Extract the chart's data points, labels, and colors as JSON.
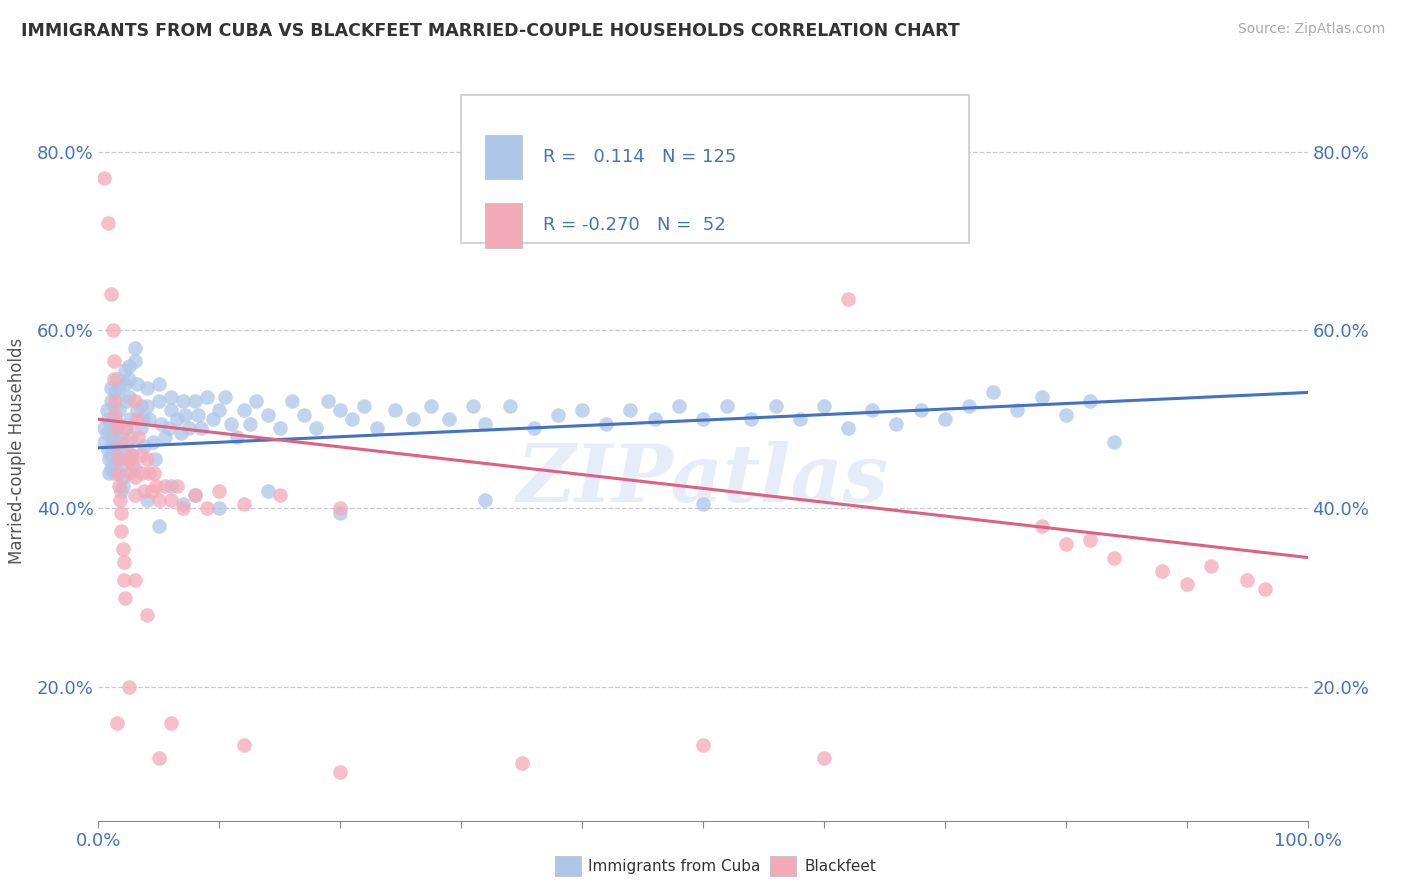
{
  "title": "IMMIGRANTS FROM CUBA VS BLACKFEET MARRIED-COUPLE HOUSEHOLDS CORRELATION CHART",
  "source_text": "Source: ZipAtlas.com",
  "ylabel": "Married-couple Households",
  "xlim": [
    0.0,
    1.0
  ],
  "ylim": [
    0.05,
    0.88
  ],
  "ytick_vals": [
    0.2,
    0.4,
    0.6,
    0.8
  ],
  "watermark": "ZIPatlas",
  "blue_color": "#aec6e8",
  "pink_color": "#f4a9b8",
  "blue_line_color": "#4472c4",
  "pink_line_color": "#e06080",
  "blue_scatter": [
    [
      0.005,
      0.49
    ],
    [
      0.005,
      0.475
    ],
    [
      0.007,
      0.51
    ],
    [
      0.007,
      0.485
    ],
    [
      0.008,
      0.465
    ],
    [
      0.008,
      0.5
    ],
    [
      0.009,
      0.455
    ],
    [
      0.009,
      0.44
    ],
    [
      0.01,
      0.495
    ],
    [
      0.01,
      0.48
    ],
    [
      0.01,
      0.46
    ],
    [
      0.01,
      0.445
    ],
    [
      0.01,
      0.52
    ],
    [
      0.01,
      0.535
    ],
    [
      0.012,
      0.5
    ],
    [
      0.012,
      0.485
    ],
    [
      0.012,
      0.47
    ],
    [
      0.013,
      0.455
    ],
    [
      0.013,
      0.44
    ],
    [
      0.013,
      0.515
    ],
    [
      0.014,
      0.5
    ],
    [
      0.014,
      0.53
    ],
    [
      0.015,
      0.545
    ],
    [
      0.015,
      0.48
    ],
    [
      0.016,
      0.465
    ],
    [
      0.016,
      0.495
    ],
    [
      0.017,
      0.51
    ],
    [
      0.017,
      0.535
    ],
    [
      0.018,
      0.475
    ],
    [
      0.018,
      0.455
    ],
    [
      0.019,
      0.42
    ],
    [
      0.02,
      0.435
    ],
    [
      0.02,
      0.45
    ],
    [
      0.02,
      0.465
    ],
    [
      0.022,
      0.555
    ],
    [
      0.022,
      0.54
    ],
    [
      0.023,
      0.52
    ],
    [
      0.023,
      0.49
    ],
    [
      0.025,
      0.56
    ],
    [
      0.025,
      0.545
    ],
    [
      0.025,
      0.525
    ],
    [
      0.026,
      0.5
    ],
    [
      0.027,
      0.48
    ],
    [
      0.028,
      0.46
    ],
    [
      0.03,
      0.58
    ],
    [
      0.03,
      0.565
    ],
    [
      0.032,
      0.54
    ],
    [
      0.032,
      0.51
    ],
    [
      0.035,
      0.49
    ],
    [
      0.035,
      0.515
    ],
    [
      0.037,
      0.5
    ],
    [
      0.038,
      0.47
    ],
    [
      0.04,
      0.535
    ],
    [
      0.04,
      0.515
    ],
    [
      0.042,
      0.5
    ],
    [
      0.045,
      0.475
    ],
    [
      0.047,
      0.455
    ],
    [
      0.05,
      0.54
    ],
    [
      0.05,
      0.52
    ],
    [
      0.052,
      0.495
    ],
    [
      0.055,
      0.48
    ],
    [
      0.058,
      0.49
    ],
    [
      0.06,
      0.51
    ],
    [
      0.06,
      0.525
    ],
    [
      0.065,
      0.5
    ],
    [
      0.068,
      0.485
    ],
    [
      0.07,
      0.52
    ],
    [
      0.072,
      0.505
    ],
    [
      0.075,
      0.49
    ],
    [
      0.08,
      0.52
    ],
    [
      0.082,
      0.505
    ],
    [
      0.085,
      0.49
    ],
    [
      0.09,
      0.525
    ],
    [
      0.095,
      0.5
    ],
    [
      0.1,
      0.51
    ],
    [
      0.105,
      0.525
    ],
    [
      0.11,
      0.495
    ],
    [
      0.115,
      0.48
    ],
    [
      0.12,
      0.51
    ],
    [
      0.125,
      0.495
    ],
    [
      0.13,
      0.52
    ],
    [
      0.14,
      0.505
    ],
    [
      0.15,
      0.49
    ],
    [
      0.16,
      0.52
    ],
    [
      0.17,
      0.505
    ],
    [
      0.18,
      0.49
    ],
    [
      0.19,
      0.52
    ],
    [
      0.2,
      0.51
    ],
    [
      0.21,
      0.5
    ],
    [
      0.22,
      0.515
    ],
    [
      0.23,
      0.49
    ],
    [
      0.245,
      0.51
    ],
    [
      0.26,
      0.5
    ],
    [
      0.275,
      0.515
    ],
    [
      0.29,
      0.5
    ],
    [
      0.31,
      0.515
    ],
    [
      0.32,
      0.495
    ],
    [
      0.34,
      0.515
    ],
    [
      0.36,
      0.49
    ],
    [
      0.38,
      0.505
    ],
    [
      0.4,
      0.51
    ],
    [
      0.42,
      0.495
    ],
    [
      0.44,
      0.51
    ],
    [
      0.46,
      0.5
    ],
    [
      0.48,
      0.515
    ],
    [
      0.5,
      0.5
    ],
    [
      0.52,
      0.515
    ],
    [
      0.54,
      0.5
    ],
    [
      0.56,
      0.515
    ],
    [
      0.58,
      0.5
    ],
    [
      0.6,
      0.515
    ],
    [
      0.62,
      0.49
    ],
    [
      0.64,
      0.51
    ],
    [
      0.66,
      0.495
    ],
    [
      0.68,
      0.51
    ],
    [
      0.7,
      0.5
    ],
    [
      0.72,
      0.515
    ],
    [
      0.74,
      0.53
    ],
    [
      0.76,
      0.51
    ],
    [
      0.78,
      0.525
    ],
    [
      0.8,
      0.505
    ],
    [
      0.82,
      0.52
    ],
    [
      0.84,
      0.475
    ],
    [
      0.02,
      0.425
    ],
    [
      0.03,
      0.445
    ],
    [
      0.04,
      0.41
    ],
    [
      0.05,
      0.38
    ],
    [
      0.06,
      0.425
    ],
    [
      0.07,
      0.405
    ],
    [
      0.08,
      0.415
    ],
    [
      0.1,
      0.4
    ],
    [
      0.14,
      0.42
    ],
    [
      0.2,
      0.395
    ],
    [
      0.32,
      0.41
    ],
    [
      0.5,
      0.405
    ]
  ],
  "pink_scatter": [
    [
      0.005,
      0.77
    ],
    [
      0.008,
      0.72
    ],
    [
      0.01,
      0.64
    ],
    [
      0.012,
      0.6
    ],
    [
      0.013,
      0.565
    ],
    [
      0.013,
      0.545
    ],
    [
      0.014,
      0.52
    ],
    [
      0.014,
      0.505
    ],
    [
      0.015,
      0.49
    ],
    [
      0.015,
      0.47
    ],
    [
      0.016,
      0.455
    ],
    [
      0.016,
      0.44
    ],
    [
      0.017,
      0.425
    ],
    [
      0.018,
      0.41
    ],
    [
      0.019,
      0.395
    ],
    [
      0.019,
      0.375
    ],
    [
      0.02,
      0.355
    ],
    [
      0.021,
      0.34
    ],
    [
      0.021,
      0.32
    ],
    [
      0.022,
      0.3
    ],
    [
      0.023,
      0.49
    ],
    [
      0.024,
      0.475
    ],
    [
      0.025,
      0.455
    ],
    [
      0.026,
      0.44
    ],
    [
      0.027,
      0.46
    ],
    [
      0.028,
      0.45
    ],
    [
      0.03,
      0.435
    ],
    [
      0.03,
      0.415
    ],
    [
      0.03,
      0.52
    ],
    [
      0.032,
      0.5
    ],
    [
      0.033,
      0.48
    ],
    [
      0.035,
      0.46
    ],
    [
      0.036,
      0.44
    ],
    [
      0.038,
      0.42
    ],
    [
      0.04,
      0.455
    ],
    [
      0.042,
      0.44
    ],
    [
      0.044,
      0.42
    ],
    [
      0.046,
      0.44
    ],
    [
      0.048,
      0.425
    ],
    [
      0.05,
      0.41
    ],
    [
      0.055,
      0.425
    ],
    [
      0.06,
      0.41
    ],
    [
      0.065,
      0.425
    ],
    [
      0.07,
      0.4
    ],
    [
      0.08,
      0.415
    ],
    [
      0.09,
      0.4
    ],
    [
      0.1,
      0.42
    ],
    [
      0.12,
      0.405
    ],
    [
      0.15,
      0.415
    ],
    [
      0.2,
      0.4
    ],
    [
      0.62,
      0.635
    ],
    [
      0.78,
      0.38
    ],
    [
      0.82,
      0.365
    ],
    [
      0.015,
      0.16
    ],
    [
      0.03,
      0.32
    ],
    [
      0.04,
      0.28
    ],
    [
      0.025,
      0.2
    ],
    [
      0.05,
      0.12
    ],
    [
      0.06,
      0.16
    ],
    [
      0.12,
      0.135
    ],
    [
      0.2,
      0.105
    ],
    [
      0.35,
      0.115
    ],
    [
      0.5,
      0.135
    ],
    [
      0.6,
      0.12
    ],
    [
      0.8,
      0.36
    ],
    [
      0.84,
      0.345
    ],
    [
      0.88,
      0.33
    ],
    [
      0.9,
      0.315
    ],
    [
      0.92,
      0.335
    ],
    [
      0.95,
      0.32
    ],
    [
      0.965,
      0.31
    ]
  ]
}
